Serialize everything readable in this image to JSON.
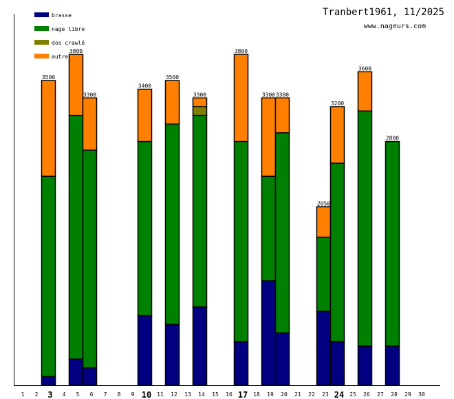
{
  "chart_data": {
    "type": "bar",
    "stacked": true,
    "title": "Tranbert1961, 11/2025",
    "subtitle": "www.nageurs.com",
    "xlabel": "",
    "ylabel": "",
    "ylim": [
      0,
      4000
    ],
    "grid": false,
    "legend_position": "top-left",
    "categories": [
      "1",
      "2",
      "3",
      "4",
      "5",
      "6",
      "7",
      "8",
      "9",
      "10",
      "11",
      "12",
      "13",
      "14",
      "15",
      "16",
      "17",
      "18",
      "19",
      "20",
      "21",
      "22",
      "23",
      "24",
      "25",
      "26",
      "27",
      "28",
      "29",
      "30"
    ],
    "bold_ticks": [
      "3",
      "10",
      "17",
      "24"
    ],
    "series": [
      {
        "name": "brasse",
        "color": "#000080",
        "values": [
          0,
          0,
          100,
          0,
          300,
          200,
          0,
          0,
          0,
          800,
          0,
          700,
          0,
          900,
          0,
          0,
          500,
          0,
          1200,
          600,
          0,
          0,
          850,
          500,
          0,
          450,
          0,
          450,
          0,
          0
        ]
      },
      {
        "name": "nage libre",
        "color": "#008000",
        "values": [
          0,
          0,
          2300,
          0,
          2800,
          2500,
          0,
          0,
          0,
          2000,
          0,
          2300,
          0,
          2200,
          0,
          0,
          2300,
          0,
          1200,
          2300,
          0,
          0,
          850,
          2050,
          0,
          2700,
          0,
          2350,
          0,
          0
        ]
      },
      {
        "name": "dos crawlé",
        "color": "#808000",
        "values": [
          0,
          0,
          0,
          0,
          0,
          0,
          0,
          0,
          0,
          0,
          0,
          0,
          0,
          100,
          0,
          0,
          0,
          0,
          0,
          0,
          0,
          0,
          0,
          0,
          0,
          0,
          0,
          0,
          0,
          0
        ]
      },
      {
        "name": "autre",
        "color": "#ff8000",
        "values": [
          0,
          0,
          1100,
          0,
          700,
          600,
          0,
          0,
          0,
          600,
          0,
          500,
          0,
          100,
          0,
          0,
          1000,
          0,
          900,
          400,
          0,
          0,
          350,
          650,
          0,
          450,
          0,
          0,
          0,
          0
        ]
      }
    ],
    "totals": [
      0,
      0,
      3500,
      0,
      3800,
      3300,
      0,
      0,
      0,
      3400,
      0,
      3500,
      0,
      3300,
      0,
      0,
      3800,
      0,
      3300,
      3300,
      0,
      0,
      2050,
      3200,
      0,
      3600,
      0,
      2800,
      0,
      0
    ]
  }
}
